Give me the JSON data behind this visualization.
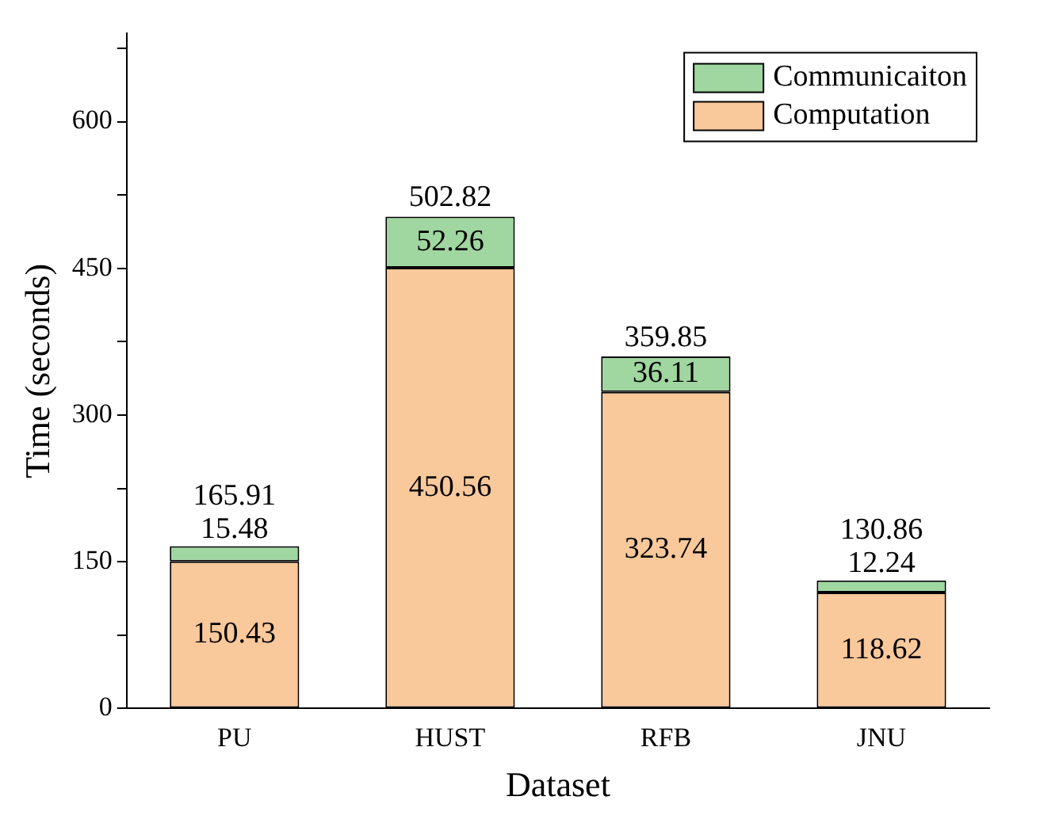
{
  "chart_data": {
    "type": "bar",
    "stacked": true,
    "xlabel": "Dataset",
    "ylabel": "Time (seconds)",
    "categories": [
      "PU",
      "HUST",
      "RFB",
      "JNU"
    ],
    "series": [
      {
        "name": "Computation",
        "color": "#f9c89b",
        "values": [
          150.43,
          450.56,
          323.74,
          118.62
        ]
      },
      {
        "name": "Communicaiton",
        "color": "#a0d6a0",
        "values": [
          15.48,
          52.26,
          36.11,
          12.24
        ]
      }
    ],
    "totals": [
      "165.91",
      "502.82",
      "359.85",
      "130.86"
    ],
    "data_labels": true,
    "legend": "top right",
    "grid": false,
    "ylim": [
      0,
      690
    ],
    "yticks": [
      0,
      {
        "value": 75,
        "label": null
      },
      150,
      {
        "value": 225,
        "label": null
      },
      300,
      {
        "value": 375,
        "label": null
      },
      450,
      {
        "value": 525,
        "label": null
      },
      600,
      {
        "value": 675,
        "label": null
      }
    ]
  }
}
